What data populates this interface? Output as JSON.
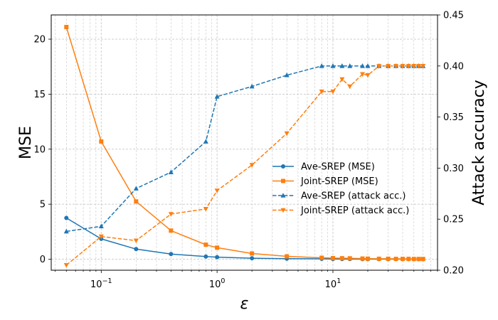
{
  "chart_data": {
    "type": "line",
    "title": "",
    "xlabel": "ε",
    "ylabel_left": "MSE",
    "ylabel_right": "Attack accuracy",
    "xscale": "log",
    "xlim": [
      0.037,
      80
    ],
    "ylim_left": [
      -1.0,
      22.2
    ],
    "ylim_right": [
      0.2,
      0.45
    ],
    "x_ticks": [
      {
        "value": 0.1,
        "base": "10",
        "exp": "−1"
      },
      {
        "value": 1,
        "base": "10",
        "exp": "0"
      },
      {
        "value": 10,
        "base": "10",
        "exp": "1"
      }
    ],
    "y_ticks_left": [
      "0",
      "5",
      "10",
      "15",
      "20"
    ],
    "y_ticks_right": [
      "0.20",
      "0.25",
      "0.30",
      "0.35",
      "0.40",
      "0.45"
    ],
    "grid": true,
    "legend_position": "center-right",
    "series": [
      {
        "name": "Ave-SREP (MSE)",
        "axis": "left",
        "color": "#1f77b4",
        "linestyle": "solid",
        "marker": "circle",
        "x": [
          0.05,
          0.1,
          0.2,
          0.4,
          0.8,
          1,
          2,
          4,
          8,
          10,
          12,
          14,
          18,
          20,
          25,
          30,
          35,
          40,
          45,
          50,
          55,
          60
        ],
        "y": [
          3.75,
          1.85,
          0.92,
          0.47,
          0.24,
          0.19,
          0.09,
          0.05,
          0.03,
          0.02,
          0.02,
          0.02,
          0.01,
          0.01,
          0.01,
          0.01,
          0.01,
          0.01,
          0.01,
          0.01,
          0.01,
          0.01
        ]
      },
      {
        "name": "Joint-SREP (MSE)",
        "axis": "left",
        "color": "#ff7f0e",
        "linestyle": "solid",
        "marker": "square",
        "x": [
          0.05,
          0.1,
          0.2,
          0.4,
          0.8,
          1,
          2,
          4,
          8,
          10,
          12,
          14,
          18,
          20,
          25,
          30,
          35,
          40,
          45,
          50,
          55,
          60
        ],
        "y": [
          21.1,
          10.7,
          5.25,
          2.6,
          1.32,
          1.05,
          0.52,
          0.26,
          0.13,
          0.1,
          0.09,
          0.08,
          0.06,
          0.05,
          0.04,
          0.04,
          0.03,
          0.03,
          0.03,
          0.02,
          0.02,
          0.02
        ]
      },
      {
        "name": "Ave-SREP (attack acc.)",
        "axis": "right",
        "color": "#1f77b4",
        "linestyle": "dashed",
        "marker": "triangle-up",
        "x": [
          0.05,
          0.1,
          0.2,
          0.4,
          0.8,
          1,
          2,
          4,
          8,
          10,
          12,
          14,
          18,
          20,
          25,
          30,
          35,
          40,
          45,
          50,
          55,
          60
        ],
        "y": [
          0.238,
          0.243,
          0.28,
          0.296,
          0.326,
          0.37,
          0.38,
          0.391,
          0.4,
          0.4,
          0.4,
          0.4,
          0.4,
          0.4,
          0.4,
          0.4,
          0.4,
          0.4,
          0.4,
          0.4,
          0.4,
          0.4
        ]
      },
      {
        "name": "Joint-SREP (attack acc.)",
        "axis": "right",
        "color": "#ff7f0e",
        "linestyle": "dashed",
        "marker": "triangle-down",
        "x": [
          0.05,
          0.1,
          0.2,
          0.4,
          0.8,
          1,
          2,
          4,
          8,
          10,
          12,
          14,
          18,
          20,
          25,
          30,
          35,
          40,
          45,
          50,
          55,
          60
        ],
        "y": [
          0.205,
          0.233,
          0.229,
          0.255,
          0.26,
          0.278,
          0.303,
          0.334,
          0.375,
          0.375,
          0.387,
          0.38,
          0.392,
          0.391,
          0.4,
          0.4,
          0.4,
          0.4,
          0.4,
          0.4,
          0.4,
          0.4
        ]
      }
    ]
  }
}
